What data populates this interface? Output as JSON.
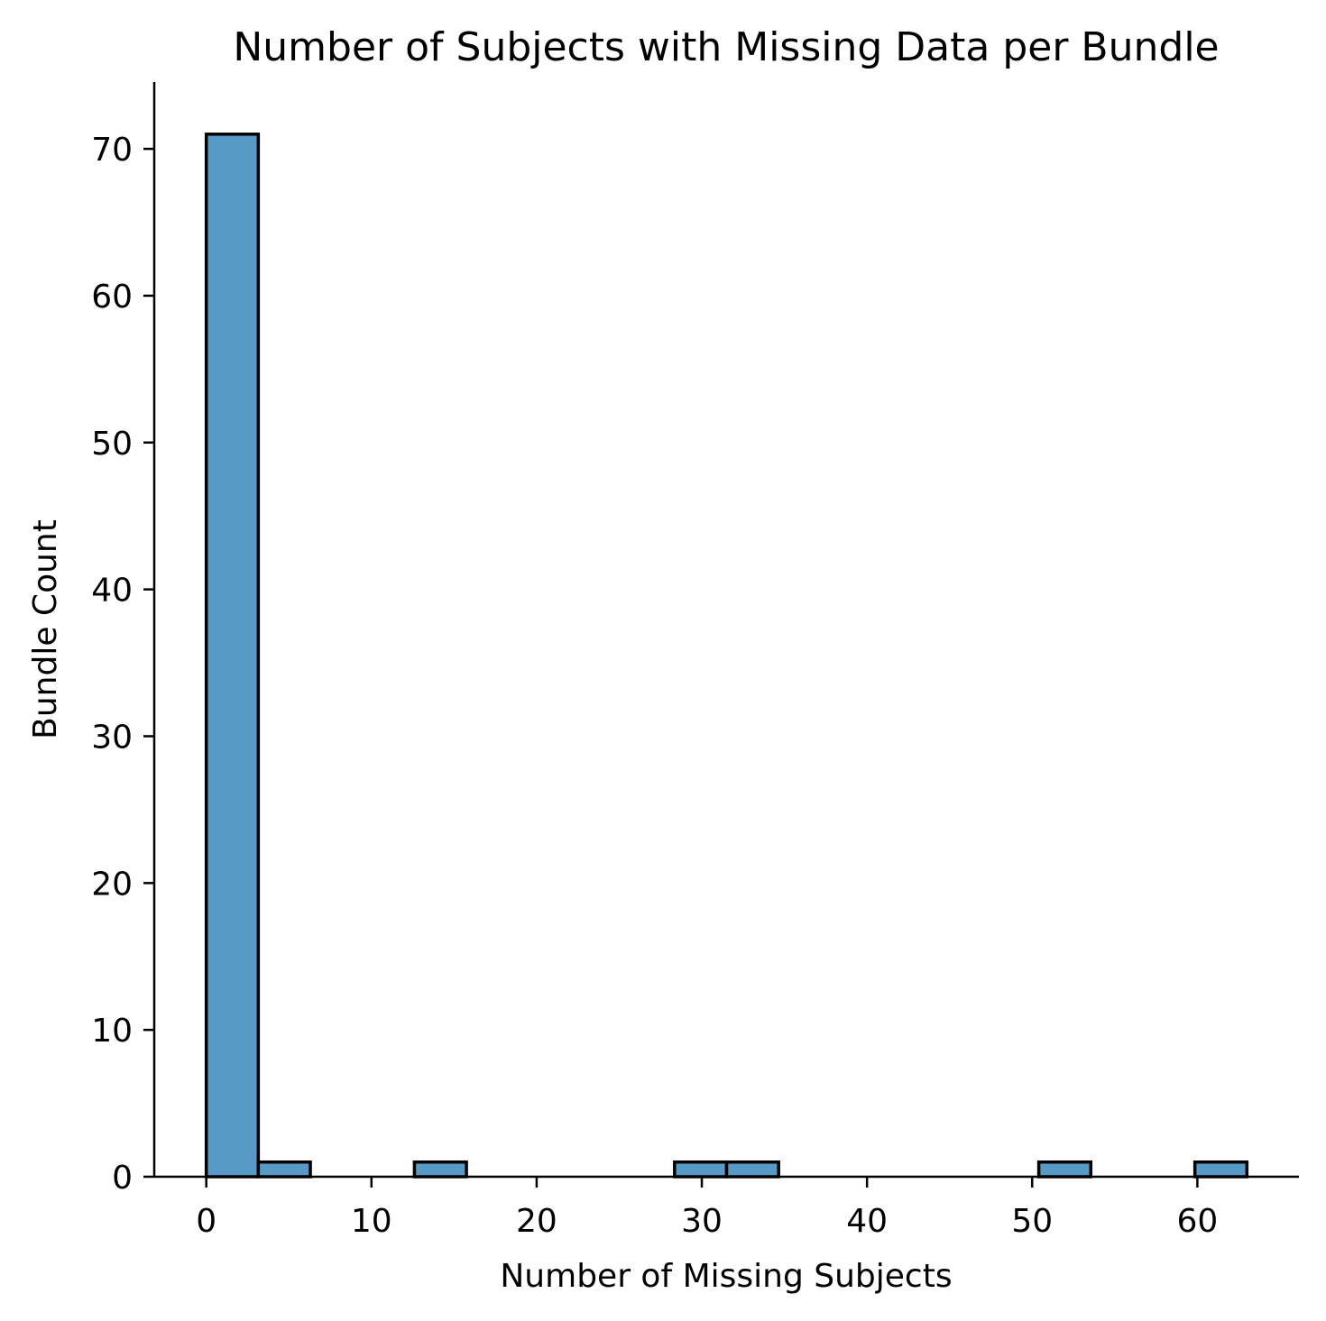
{
  "chart_data": {
    "type": "bar",
    "title": "Number of Subjects with Missing Data per Bundle",
    "xlabel": "Number of Missing Subjects",
    "ylabel": "Bundle Count",
    "xlim": [
      -3.15,
      66.15
    ],
    "ylim": [
      0,
      74.55
    ],
    "xticks": [
      0,
      10,
      20,
      30,
      40,
      50,
      60
    ],
    "yticks": [
      0,
      10,
      20,
      30,
      40,
      50,
      60,
      70
    ],
    "bins": [
      {
        "x0": 0.0,
        "x1": 3.15,
        "count": 71
      },
      {
        "x0": 3.15,
        "x1": 6.3,
        "count": 1
      },
      {
        "x0": 12.6,
        "x1": 15.75,
        "count": 1
      },
      {
        "x0": 28.35,
        "x1": 31.5,
        "count": 1
      },
      {
        "x0": 31.5,
        "x1": 34.65,
        "count": 1
      },
      {
        "x0": 50.4,
        "x1": 53.55,
        "count": 1
      },
      {
        "x0": 59.85,
        "x1": 63.0,
        "count": 1
      }
    ],
    "bar_color": "#5799c7",
    "edge_color": "#000000",
    "grid": false,
    "spines": [
      "left",
      "bottom"
    ]
  }
}
